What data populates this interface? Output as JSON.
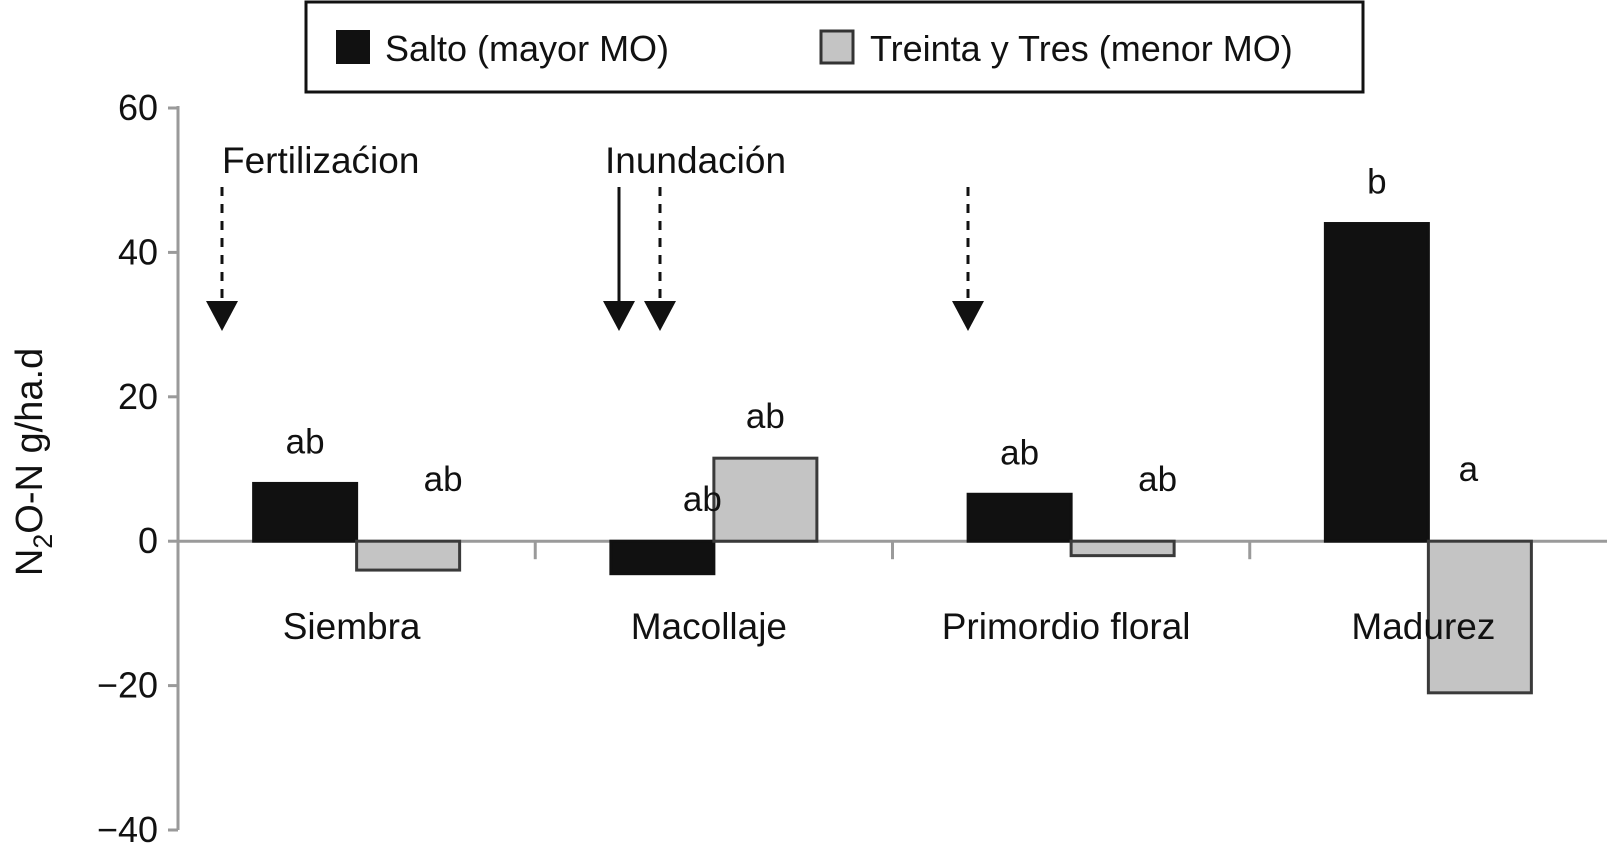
{
  "chart_data": {
    "type": "bar",
    "categories": [
      "Siembra",
      "Macollaje",
      "Primordio floral",
      "Madurez"
    ],
    "series": [
      {
        "name": "Salto (mayor MO)",
        "values": [
          8,
          -4.5,
          6.5,
          44
        ],
        "color": "#111111",
        "labels": [
          "ab",
          "ab",
          "ab",
          "b"
        ]
      },
      {
        "name": "Treinta y Tres (menor MO)",
        "values": [
          -4,
          11.5,
          -2,
          -21
        ],
        "color": "#c4c4c4",
        "labels": [
          "ab",
          "ab",
          "ab",
          "a"
        ]
      }
    ],
    "ylabel_main": "N",
    "ylabel_sub": "2",
    "ylabel_rest": "O-N g/ha.d",
    "yticks": [
      "60",
      "40",
      "20",
      "0",
      "−20",
      "−40"
    ],
    "ytick_values": [
      60,
      40,
      20,
      0,
      -20,
      -40
    ],
    "ylim": [
      -40,
      60
    ],
    "grid": false,
    "legend_position": "top-center",
    "events": [
      {
        "label": "Fertilizaćion",
        "category_position": 0,
        "style": "dashed"
      },
      {
        "label": "Inundación",
        "category_position": 1,
        "style": "solid"
      },
      {
        "label": "",
        "category_position": 1,
        "style": "dashed"
      },
      {
        "label": "",
        "category_position": 2,
        "style": "dashed"
      }
    ]
  }
}
